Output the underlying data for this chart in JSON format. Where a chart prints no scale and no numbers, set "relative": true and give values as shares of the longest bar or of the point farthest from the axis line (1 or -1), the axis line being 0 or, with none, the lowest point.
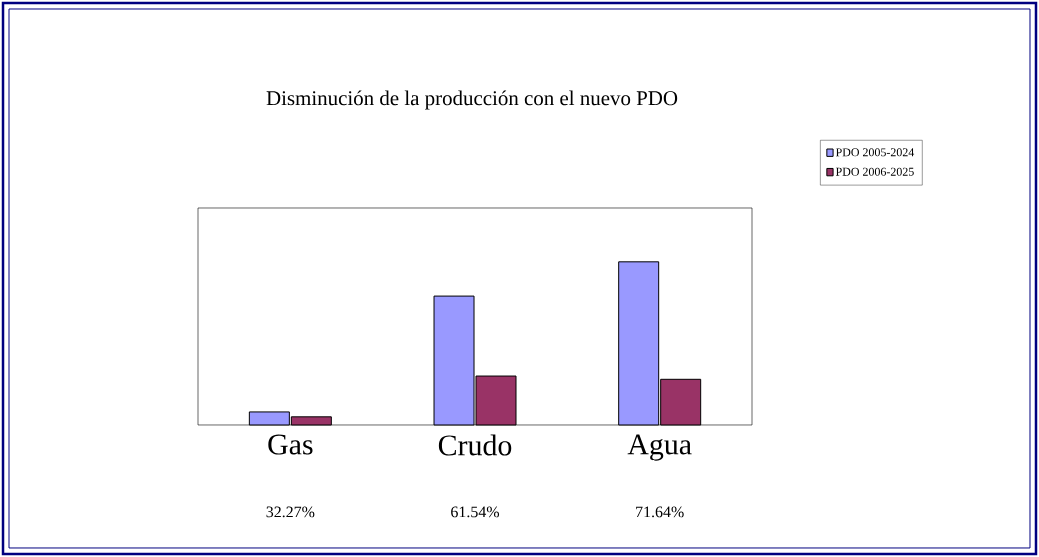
{
  "chart_data": {
    "type": "bar",
    "title": "Disminución de la producción con el nuevo PDO",
    "relative": true,
    "categories": [
      "Gas",
      "Crudo",
      "Agua"
    ],
    "series": [
      {
        "name": "PDO 2005-2024",
        "color": "#9999ff",
        "values": [
          0.08,
          0.79,
          1.0
        ]
      },
      {
        "name": "PDO 2006-2025",
        "color": "#993366",
        "values": [
          0.05,
          0.3,
          0.28
        ]
      }
    ],
    "annotations": [
      "32.27%",
      "61.54%",
      "71.64%"
    ],
    "legend": "top right"
  }
}
